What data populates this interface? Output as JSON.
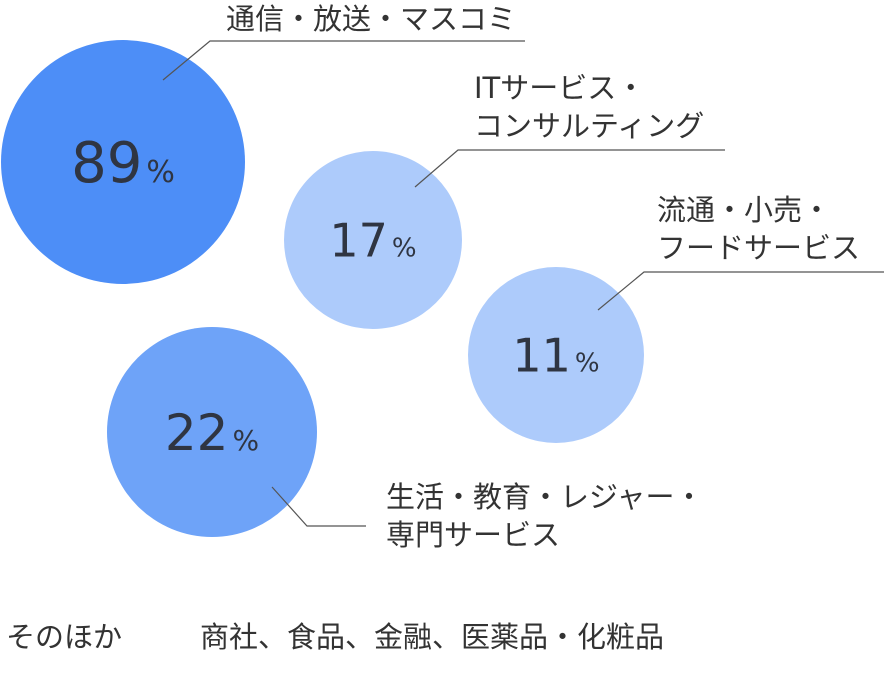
{
  "chart_data": {
    "type": "bubble",
    "unit": "%",
    "items": [
      {
        "label_lines": [
          "通信・放送・マスコミ"
        ],
        "value": 89,
        "color": "#4d8ef7"
      },
      {
        "label_lines": [
          "ITサービス・",
          "コンサルティング"
        ],
        "value": 17,
        "color": "#adcbfb"
      },
      {
        "label_lines": [
          "流通・小売・",
          "フードサービス"
        ],
        "value": 11,
        "color": "#adcbfb"
      },
      {
        "label_lines": [
          "生活・教育・レジャー・",
          "専門サービス"
        ],
        "value": 22,
        "color": "#6ea3f8"
      }
    ]
  },
  "others": {
    "label": "そのほか",
    "items": "商社、食品、金融、医薬品・化粧品"
  }
}
